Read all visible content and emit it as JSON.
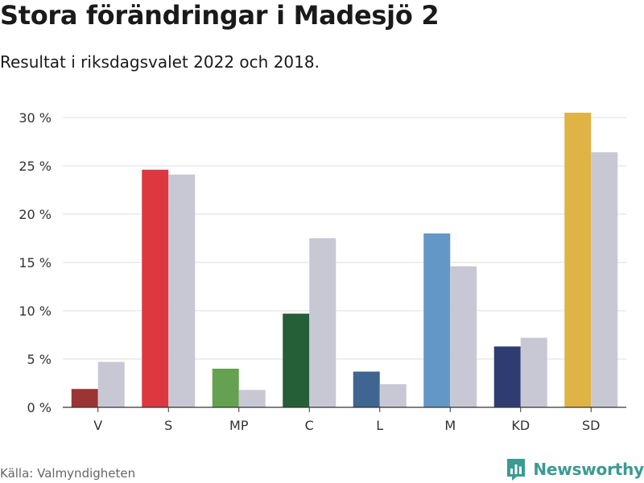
{
  "title": "Stora förändringar i Madesjö 2",
  "subtitle": "Resultat i riksdagsvalet 2022 och 2018.",
  "source": "Källa: Valmyndigheten",
  "brand": {
    "name": "Newsworthy",
    "icon": "bar-chart-logo-icon",
    "color": "#3a9b91"
  },
  "chart_data": {
    "type": "bar",
    "categories": [
      "V",
      "S",
      "MP",
      "C",
      "L",
      "M",
      "KD",
      "SD"
    ],
    "series": [
      {
        "values": [
          1.9,
          24.6,
          4.0,
          9.7,
          3.7,
          18.0,
          6.3,
          30.5
        ],
        "colors": [
          "#9b3533",
          "#dd3840",
          "#64a151",
          "#255f37",
          "#3f6591",
          "#6397c6",
          "#2f3c72",
          "#dfb345"
        ]
      },
      {
        "values": [
          4.7,
          24.1,
          1.8,
          17.5,
          2.4,
          14.6,
          7.2,
          26.4
        ],
        "color": "#c8c8d4"
      }
    ],
    "ylim": [
      0,
      30
    ],
    "yticks": [
      0,
      5,
      10,
      15,
      20,
      25,
      30
    ],
    "ytick_labels": [
      "0 %",
      "5 %",
      "10 %",
      "15 %",
      "20 %",
      "25 %",
      "30 %"
    ],
    "grid": true,
    "legend": "none"
  }
}
